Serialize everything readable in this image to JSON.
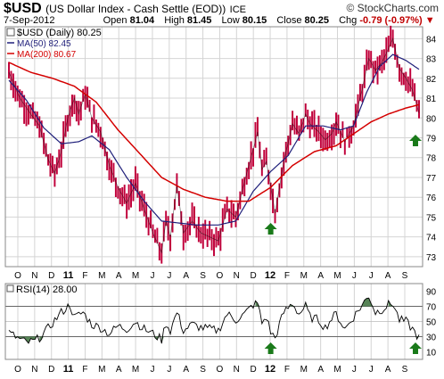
{
  "header": {
    "symbol": "$USD",
    "description": "(US Dollar Index - Cash Settle (EOD))",
    "exchange": "ICE",
    "brand": "© StockCharts.com",
    "date": "7-Sep-2012",
    "open_label": "Open",
    "open": "81.04",
    "high_label": "High",
    "high": "81.45",
    "low_label": "Low",
    "low": "80.15",
    "close_label": "Close",
    "close": "80.25",
    "chg_label": "Chg",
    "chg": "-0.79 (-0.97%)",
    "chg_arrow": "▼"
  },
  "colors": {
    "price": "#c0003a",
    "ma50": "#1f1f7a",
    "ma200": "#d40000",
    "rsi": "#000000",
    "rsi_fill": "#3a6e3a",
    "grid": "#d4d4d4",
    "arrow": "#1a7a1a"
  },
  "chart_data": [
    {
      "type": "line",
      "legend": {
        "price": "$USD (Daily) 80.25",
        "ma50": "MA(50) 82.45",
        "ma200": "MA(200) 80.67"
      },
      "x_ticks": [
        "O",
        "N",
        "D",
        "11",
        "F",
        "M",
        "A",
        "M",
        "J",
        "J",
        "A",
        "S",
        "O",
        "N",
        "D",
        "12",
        "F",
        "M",
        "A",
        "M",
        "J",
        "J",
        "A",
        "S"
      ],
      "y_ticks": [
        73,
        74,
        75,
        76,
        77,
        78,
        79,
        80,
        81,
        82,
        83,
        84
      ],
      "ylim": [
        72.5,
        84.6
      ],
      "price_keypoints": [
        [
          0,
          82.3
        ],
        [
          5,
          81.0
        ],
        [
          10,
          80.2
        ],
        [
          14,
          79.6
        ],
        [
          18,
          77.9
        ],
        [
          21,
          77.2
        ],
        [
          24,
          78.3
        ],
        [
          27,
          80.0
        ],
        [
          30,
          81.0
        ],
        [
          32,
          80.2
        ],
        [
          35,
          81.2
        ],
        [
          38,
          80.0
        ],
        [
          42,
          79.3
        ],
        [
          46,
          77.6
        ],
        [
          50,
          76.5
        ],
        [
          54,
          75.7
        ],
        [
          58,
          76.7
        ],
        [
          62,
          75.4
        ],
        [
          66,
          74.2
        ],
        [
          70,
          73.2
        ],
        [
          72,
          74.8
        ],
        [
          74,
          74.0
        ],
        [
          77,
          76.6
        ],
        [
          80,
          74.2
        ],
        [
          84,
          74.8
        ],
        [
          88,
          74.2
        ],
        [
          92,
          74.0
        ],
        [
          96,
          73.8
        ],
        [
          100,
          75.4
        ],
        [
          104,
          75.0
        ],
        [
          108,
          76.8
        ],
        [
          112,
          78.4
        ],
        [
          114,
          79.3
        ],
        [
          116,
          77.4
        ],
        [
          118,
          77.8
        ],
        [
          120,
          76.6
        ],
        [
          122,
          75.2
        ],
        [
          124,
          76.5
        ],
        [
          126,
          77.8
        ],
        [
          130,
          79.7
        ],
        [
          133,
          79.2
        ],
        [
          136,
          80.2
        ],
        [
          138,
          79.7
        ],
        [
          142,
          79.3
        ],
        [
          145,
          78.9
        ],
        [
          148,
          79.2
        ],
        [
          150,
          79.8
        ],
        [
          154,
          78.8
        ],
        [
          158,
          79.6
        ],
        [
          162,
          81.5
        ],
        [
          165,
          83.0
        ],
        [
          168,
          82.4
        ],
        [
          171,
          82.8
        ],
        [
          174,
          83.5
        ],
        [
          176,
          84.0
        ],
        [
          179,
          82.5
        ],
        [
          182,
          82.0
        ],
        [
          185,
          81.4
        ],
        [
          188,
          80.25
        ]
      ],
      "ma50_keypoints": [
        [
          0,
          81.9
        ],
        [
          8,
          80.9
        ],
        [
          16,
          79.5
        ],
        [
          24,
          78.7
        ],
        [
          32,
          78.8
        ],
        [
          38,
          79.1
        ],
        [
          46,
          78.4
        ],
        [
          54,
          77.0
        ],
        [
          62,
          75.8
        ],
        [
          70,
          74.8
        ],
        [
          78,
          74.7
        ],
        [
          86,
          74.6
        ],
        [
          96,
          74.6
        ],
        [
          104,
          74.8
        ],
        [
          112,
          76.3
        ],
        [
          120,
          77.3
        ],
        [
          128,
          78.1
        ],
        [
          136,
          79.6
        ],
        [
          144,
          79.6
        ],
        [
          152,
          79.4
        ],
        [
          158,
          79.6
        ],
        [
          164,
          81.3
        ],
        [
          170,
          82.6
        ],
        [
          176,
          83.2
        ],
        [
          182,
          82.9
        ],
        [
          188,
          82.45
        ]
      ],
      "ma200_keypoints": [
        [
          0,
          82.8
        ],
        [
          10,
          82.3
        ],
        [
          20,
          82.0
        ],
        [
          30,
          81.6
        ],
        [
          40,
          80.8
        ],
        [
          50,
          79.4
        ],
        [
          60,
          78.2
        ],
        [
          70,
          77.0
        ],
        [
          80,
          76.4
        ],
        [
          90,
          76.0
        ],
        [
          100,
          75.8
        ],
        [
          110,
          75.8
        ],
        [
          120,
          76.5
        ],
        [
          130,
          77.6
        ],
        [
          140,
          78.3
        ],
        [
          150,
          78.6
        ],
        [
          158,
          79.2
        ],
        [
          166,
          79.8
        ],
        [
          174,
          80.2
        ],
        [
          182,
          80.5
        ],
        [
          188,
          80.67
        ]
      ],
      "arrows": [
        120,
        188
      ]
    },
    {
      "type": "line",
      "legend": "RSI(14) 28.00",
      "y_ticks": [
        10,
        30,
        50,
        70,
        90
      ],
      "ylim": [
        0,
        100
      ],
      "bands": [
        30,
        70
      ],
      "rsi_keypoints": [
        [
          0,
          35
        ],
        [
          4,
          28
        ],
        [
          8,
          22
        ],
        [
          12,
          24
        ],
        [
          16,
          34
        ],
        [
          20,
          48
        ],
        [
          24,
          62
        ],
        [
          28,
          72
        ],
        [
          30,
          55
        ],
        [
          34,
          62
        ],
        [
          38,
          46
        ],
        [
          42,
          42
        ],
        [
          46,
          34
        ],
        [
          50,
          44
        ],
        [
          54,
          40
        ],
        [
          58,
          50
        ],
        [
          62,
          40
        ],
        [
          66,
          34
        ],
        [
          70,
          26
        ],
        [
          72,
          48
        ],
        [
          74,
          38
        ],
        [
          77,
          62
        ],
        [
          80,
          38
        ],
        [
          84,
          46
        ],
        [
          88,
          42
        ],
        [
          92,
          40
        ],
        [
          96,
          38
        ],
        [
          100,
          60
        ],
        [
          104,
          52
        ],
        [
          108,
          60
        ],
        [
          112,
          72
        ],
        [
          114,
          74
        ],
        [
          116,
          48
        ],
        [
          118,
          56
        ],
        [
          120,
          36
        ],
        [
          122,
          28
        ],
        [
          124,
          46
        ],
        [
          126,
          62
        ],
        [
          130,
          74
        ],
        [
          133,
          60
        ],
        [
          136,
          70
        ],
        [
          138,
          56
        ],
        [
          142,
          52
        ],
        [
          145,
          42
        ],
        [
          148,
          54
        ],
        [
          150,
          60
        ],
        [
          154,
          40
        ],
        [
          158,
          56
        ],
        [
          162,
          72
        ],
        [
          165,
          84
        ],
        [
          168,
          62
        ],
        [
          171,
          66
        ],
        [
          174,
          72
        ],
        [
          176,
          74
        ],
        [
          179,
          52
        ],
        [
          182,
          50
        ],
        [
          185,
          40
        ],
        [
          188,
          28
        ]
      ],
      "arrows": [
        120,
        188
      ]
    }
  ]
}
